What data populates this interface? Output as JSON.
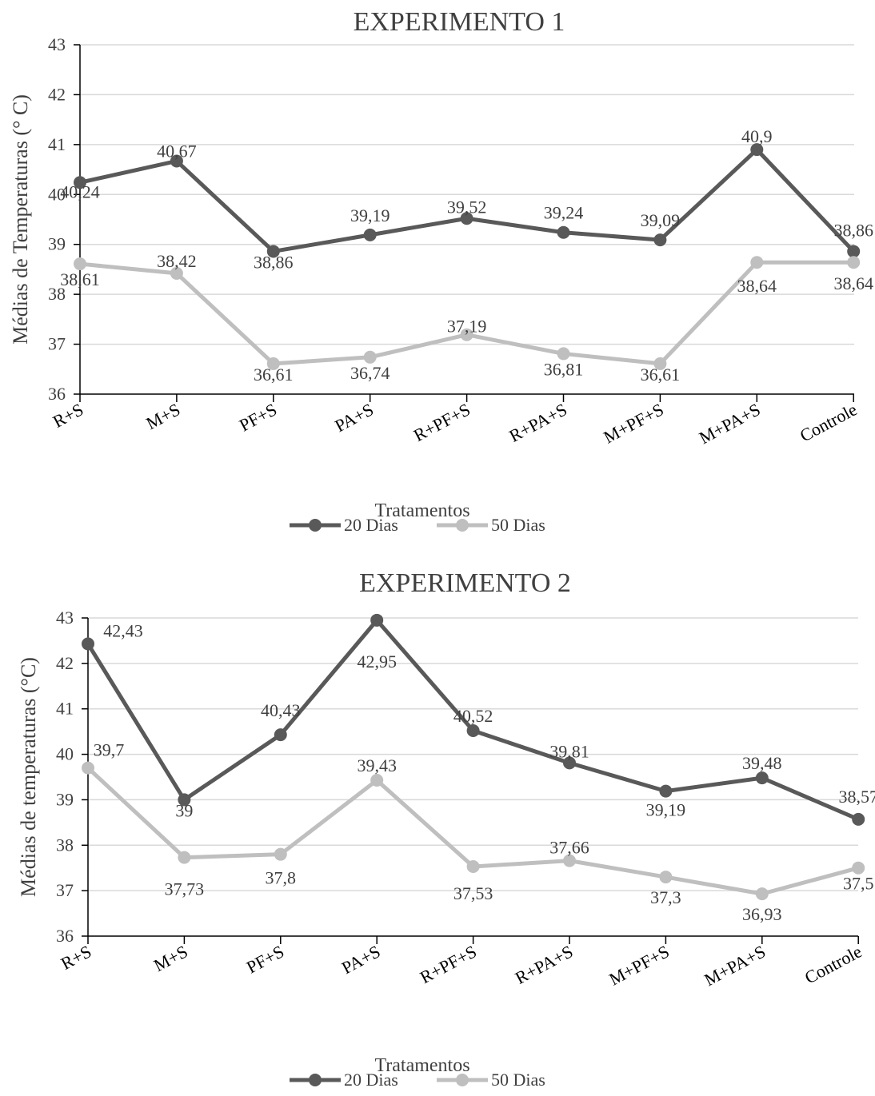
{
  "colors": {
    "series_20": "#595959",
    "series_50": "#bfbfbf",
    "axis": "#000000",
    "grid": "#d9d9d9",
    "text": "#404040"
  },
  "chart_data": [
    {
      "type": "line",
      "title": "EXPERIMENTO 1",
      "xlabel": "Tratamentos",
      "ylabel": "Médias de Temperaturas (° C)",
      "ylim": [
        36,
        43
      ],
      "yticks": [
        "36",
        "37",
        "38",
        "39",
        "40",
        "41",
        "42",
        "43"
      ],
      "grid": true,
      "legend_position": "bottom",
      "categories": [
        "R+S",
        "M+S",
        "PF+S",
        "PA+S",
        "R+PF+S",
        "R+PA+S",
        "M+PF+S",
        "M+PA+S",
        "Controle"
      ],
      "series": [
        {
          "name": "20 Dias",
          "color": "#595959",
          "values": [
            40.24,
            40.67,
            38.86,
            39.19,
            39.52,
            39.24,
            39.09,
            40.9,
            38.86
          ],
          "labels": [
            "40,24",
            "40,67",
            "38,86",
            "39,19",
            "39,52",
            "39,24",
            "39,09",
            "40,9",
            "38,86"
          ]
        },
        {
          "name": "50 Dias",
          "color": "#bfbfbf",
          "values": [
            38.61,
            38.42,
            36.61,
            36.74,
            37.19,
            36.81,
            36.61,
            38.64,
            38.64
          ],
          "labels": [
            "38,61",
            "38,42",
            "36,61",
            "36,74",
            "37,19",
            "36,81",
            "36,61",
            "38,64",
            "38,64"
          ]
        }
      ]
    },
    {
      "type": "line",
      "title": "EXPERIMENTO 2",
      "xlabel": "Tratamentos",
      "ylabel": "Médias de temperaturas (°C)",
      "ylim": [
        36,
        43
      ],
      "yticks": [
        "36",
        "37",
        "38",
        "39",
        "40",
        "41",
        "42",
        "43"
      ],
      "grid": true,
      "legend_position": "bottom",
      "categories": [
        "R+S",
        "M+S",
        "PF+S",
        "PA+S",
        "R+PF+S",
        "R+PA+S",
        "M+PF+S",
        "M+PA+S",
        "Controle"
      ],
      "series": [
        {
          "name": "20 Dias",
          "color": "#595959",
          "values": [
            42.43,
            39,
            40.43,
            42.95,
            40.52,
            39.81,
            39.19,
            39.48,
            38.57
          ],
          "labels": [
            "42,43",
            "39",
            "40,43",
            "42,95",
            "40,52",
            "39,81",
            "39,19",
            "39,48",
            "38,57"
          ]
        },
        {
          "name": "50 Dias",
          "color": "#bfbfbf",
          "values": [
            39.7,
            37.73,
            37.8,
            39.43,
            37.53,
            37.66,
            37.3,
            36.93,
            37.5
          ],
          "labels": [
            "39,7",
            "37,73",
            "37,8",
            "39,43",
            "37,53",
            "37,66",
            "37,3",
            "36,93",
            "37,5"
          ]
        }
      ]
    }
  ]
}
